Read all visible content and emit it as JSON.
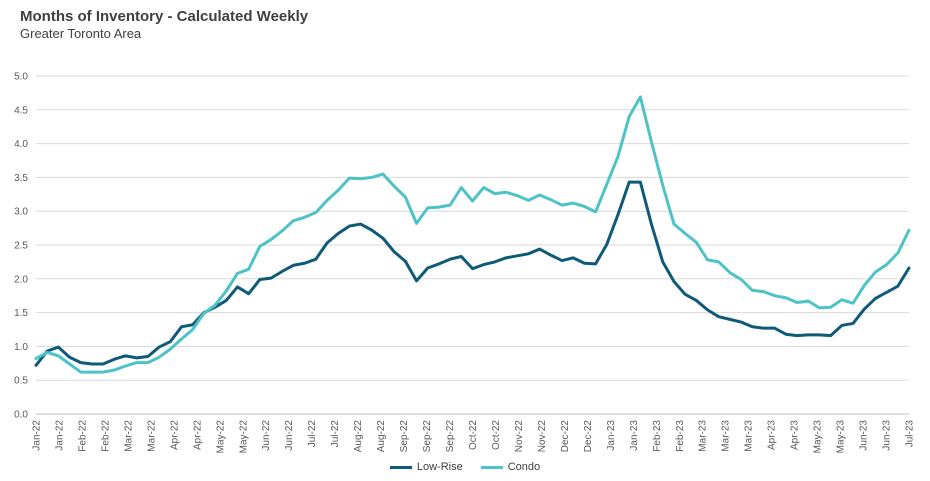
{
  "title": "Months of Inventory - Calculated Weekly",
  "subtitle": "Greater Toronto Area",
  "chart_data": {
    "type": "line",
    "title": "Months of Inventory - Calculated Weekly",
    "subtitle": "Greater Toronto Area",
    "xlabel": "",
    "ylabel": "",
    "ylim": [
      0,
      5.0
    ],
    "yticks": [
      "0.0",
      "0.5",
      "1.0",
      "1.5",
      "2.0",
      "2.5",
      "3.0",
      "3.5",
      "4.0",
      "4.5",
      "5.0"
    ],
    "grid": true,
    "legend_position": "bottom",
    "x_tick_labels": [
      "Jan-22",
      "Jan-22",
      "Feb-22",
      "Feb-22",
      "Mar-22",
      "Mar-22",
      "Apr-22",
      "Apr-22",
      "May-22",
      "May-22",
      "Jun-22",
      "Jun-22",
      "Jul-22",
      "Jul-22",
      "Aug-22",
      "Aug-22",
      "Sep-22",
      "Sep-22",
      "Sep-22",
      "Oct-22",
      "Oct-22",
      "Nov-22",
      "Nov-22",
      "Dec-22",
      "Dec-22",
      "Jan-23",
      "Jan-23",
      "Feb-23",
      "Feb-23",
      "Mar-23",
      "Mar-23",
      "Mar-23",
      "Apr-23",
      "Apr-23",
      "May-23",
      "May-23",
      "Jun-23",
      "Jun-23",
      "Jul-23"
    ],
    "series": [
      {
        "name": "Low-Rise",
        "color": "#0e5a78",
        "values": [
          0.72,
          0.93,
          0.99,
          0.84,
          0.76,
          0.74,
          0.74,
          0.81,
          0.86,
          0.83,
          0.85,
          0.99,
          1.07,
          1.29,
          1.32,
          1.5,
          1.58,
          1.68,
          1.88,
          1.78,
          1.99,
          2.01,
          2.11,
          2.2,
          2.23,
          2.29,
          2.53,
          2.67,
          2.78,
          2.81,
          2.72,
          2.6,
          2.4,
          2.26,
          1.97,
          2.16,
          2.22,
          2.29,
          2.33,
          2.15,
          2.21,
          2.25,
          2.31,
          2.34,
          2.37,
          2.44,
          2.35,
          2.27,
          2.31,
          2.23,
          2.22,
          2.51,
          2.95,
          3.43,
          3.43,
          2.8,
          2.25,
          1.96,
          1.77,
          1.68,
          1.54,
          1.44,
          1.4,
          1.36,
          1.29,
          1.27,
          1.27,
          1.18,
          1.16,
          1.17,
          1.17,
          1.16,
          1.31,
          1.34,
          1.55,
          1.71,
          1.8,
          1.89,
          2.16
        ]
      },
      {
        "name": "Condo",
        "color": "#4ec3c7",
        "values": [
          0.82,
          0.91,
          0.86,
          0.74,
          0.62,
          0.62,
          0.62,
          0.65,
          0.71,
          0.76,
          0.76,
          0.84,
          0.96,
          1.11,
          1.25,
          1.49,
          1.61,
          1.82,
          2.08,
          2.14,
          2.48,
          2.58,
          2.71,
          2.86,
          2.91,
          2.98,
          3.16,
          3.31,
          3.49,
          3.48,
          3.5,
          3.55,
          3.37,
          3.21,
          2.82,
          3.05,
          3.06,
          3.09,
          3.35,
          3.15,
          3.35,
          3.26,
          3.28,
          3.23,
          3.16,
          3.24,
          3.17,
          3.09,
          3.12,
          3.07,
          2.99,
          3.4,
          3.81,
          4.4,
          4.69,
          4.02,
          3.38,
          2.81,
          2.67,
          2.54,
          2.28,
          2.25,
          2.09,
          1.99,
          1.83,
          1.81,
          1.75,
          1.72,
          1.65,
          1.67,
          1.57,
          1.58,
          1.69,
          1.64,
          1.9,
          2.1,
          2.21,
          2.38,
          2.72
        ]
      }
    ]
  }
}
